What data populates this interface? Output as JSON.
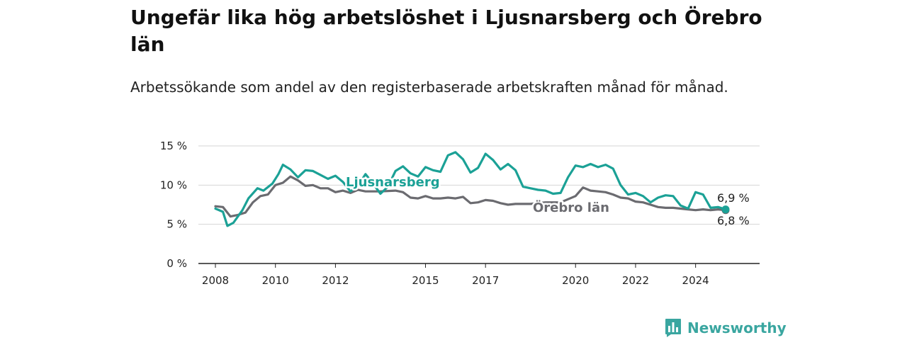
{
  "title": "Ungefär lika hög arbetslöshet i Ljusnarsberg och Örebro län",
  "subtitle": "Arbetssökande som andel av den registerbaserade arbetskraften månad för månad.",
  "logo": {
    "text": "Newsworthy",
    "color": "#3aa6a0",
    "icon": "bar-chart-icon"
  },
  "chart_data": {
    "type": "line",
    "title": "Ungefär lika hög arbetslöshet i Ljusnarsberg och Örebro län",
    "subtitle": "Arbetssökande som andel av den registerbaserade arbetskraften månad för månad.",
    "xlabel": "",
    "ylabel": "",
    "ylim": [
      0,
      15
    ],
    "xlim": [
      2008,
      2025.5
    ],
    "y_ticks": [
      {
        "value": 0,
        "label": "0 %"
      },
      {
        "value": 5,
        "label": "5 %"
      },
      {
        "value": 10,
        "label": "10 %"
      },
      {
        "value": 15,
        "label": "15 %"
      }
    ],
    "x_ticks": [
      {
        "value": 2008,
        "label": "2008"
      },
      {
        "value": 2010,
        "label": "2010"
      },
      {
        "value": 2012,
        "label": "2012"
      },
      {
        "value": 2015,
        "label": "2015"
      },
      {
        "value": 2017,
        "label": "2017"
      },
      {
        "value": 2020,
        "label": "2020"
      },
      {
        "value": 2022,
        "label": "2022"
      },
      {
        "value": 2024,
        "label": "2024"
      }
    ],
    "grid": true,
    "legend": "inline labels",
    "series": [
      {
        "name": "Örebro län",
        "color": "#6b6b70",
        "end_label": "6,8 %",
        "points": [
          [
            2008.0,
            7.3
          ],
          [
            2008.25,
            7.2
          ],
          [
            2008.5,
            6.0
          ],
          [
            2008.75,
            6.2
          ],
          [
            2009.0,
            6.5
          ],
          [
            2009.25,
            7.8
          ],
          [
            2009.5,
            8.6
          ],
          [
            2009.75,
            8.8
          ],
          [
            2010.0,
            10.0
          ],
          [
            2010.25,
            10.3
          ],
          [
            2010.5,
            11.1
          ],
          [
            2010.75,
            10.6
          ],
          [
            2011.0,
            9.9
          ],
          [
            2011.25,
            10.0
          ],
          [
            2011.5,
            9.6
          ],
          [
            2011.75,
            9.6
          ],
          [
            2012.0,
            9.1
          ],
          [
            2012.25,
            9.3
          ],
          [
            2012.5,
            9.0
          ],
          [
            2012.75,
            9.4
          ],
          [
            2013.0,
            9.2
          ],
          [
            2013.5,
            9.2
          ],
          [
            2014.0,
            9.3
          ],
          [
            2014.25,
            9.1
          ],
          [
            2014.5,
            8.4
          ],
          [
            2014.75,
            8.3
          ],
          [
            2015.0,
            8.6
          ],
          [
            2015.25,
            8.3
          ],
          [
            2015.5,
            8.3
          ],
          [
            2015.75,
            8.4
          ],
          [
            2016.0,
            8.3
          ],
          [
            2016.25,
            8.5
          ],
          [
            2016.5,
            7.7
          ],
          [
            2016.75,
            7.8
          ],
          [
            2017.0,
            8.1
          ],
          [
            2017.25,
            8.0
          ],
          [
            2017.5,
            7.7
          ],
          [
            2017.75,
            7.5
          ],
          [
            2018.0,
            7.6
          ],
          [
            2018.5,
            7.6
          ],
          [
            2019.0,
            7.8
          ],
          [
            2019.5,
            7.8
          ],
          [
            2020.0,
            8.6
          ],
          [
            2020.25,
            9.7
          ],
          [
            2020.5,
            9.3
          ],
          [
            2020.75,
            9.2
          ],
          [
            2021.0,
            9.1
          ],
          [
            2021.25,
            8.8
          ],
          [
            2021.5,
            8.4
          ],
          [
            2021.75,
            8.3
          ],
          [
            2022.0,
            7.9
          ],
          [
            2022.25,
            7.8
          ],
          [
            2022.5,
            7.5
          ],
          [
            2022.75,
            7.2
          ],
          [
            2023.0,
            7.1
          ],
          [
            2023.25,
            7.1
          ],
          [
            2023.5,
            7.0
          ],
          [
            2023.75,
            6.9
          ],
          [
            2024.0,
            6.8
          ],
          [
            2024.25,
            6.9
          ],
          [
            2024.5,
            6.8
          ],
          [
            2024.75,
            6.9
          ],
          [
            2025.0,
            6.8
          ]
        ]
      },
      {
        "name": "Ljusnarsberg",
        "color": "#1ba196",
        "end_label": "6,9 %",
        "points": [
          [
            2008.0,
            7.0
          ],
          [
            2008.25,
            6.6
          ],
          [
            2008.4,
            4.8
          ],
          [
            2008.6,
            5.2
          ],
          [
            2008.9,
            6.8
          ],
          [
            2009.1,
            8.3
          ],
          [
            2009.4,
            9.6
          ],
          [
            2009.6,
            9.3
          ],
          [
            2009.9,
            10.2
          ],
          [
            2010.1,
            11.4
          ],
          [
            2010.25,
            12.6
          ],
          [
            2010.5,
            12.0
          ],
          [
            2010.75,
            11.0
          ],
          [
            2011.0,
            11.9
          ],
          [
            2011.25,
            11.8
          ],
          [
            2011.5,
            11.3
          ],
          [
            2011.75,
            10.8
          ],
          [
            2012.0,
            11.2
          ],
          [
            2012.25,
            10.4
          ],
          [
            2012.5,
            9.2
          ],
          [
            2012.75,
            9.9
          ],
          [
            2013.0,
            11.4
          ],
          [
            2013.25,
            10.2
          ],
          [
            2013.5,
            8.9
          ],
          [
            2013.75,
            9.8
          ],
          [
            2014.0,
            11.8
          ],
          [
            2014.25,
            12.4
          ],
          [
            2014.5,
            11.5
          ],
          [
            2014.75,
            11.1
          ],
          [
            2015.0,
            12.3
          ],
          [
            2015.25,
            11.9
          ],
          [
            2015.5,
            11.7
          ],
          [
            2015.75,
            13.8
          ],
          [
            2016.0,
            14.2
          ],
          [
            2016.25,
            13.3
          ],
          [
            2016.5,
            11.6
          ],
          [
            2016.75,
            12.2
          ],
          [
            2017.0,
            14.0
          ],
          [
            2017.25,
            13.2
          ],
          [
            2017.5,
            12.0
          ],
          [
            2017.75,
            12.7
          ],
          [
            2018.0,
            11.9
          ],
          [
            2018.25,
            9.8
          ],
          [
            2018.5,
            9.6
          ],
          [
            2018.75,
            9.4
          ],
          [
            2019.0,
            9.3
          ],
          [
            2019.25,
            8.9
          ],
          [
            2019.5,
            9.0
          ],
          [
            2019.75,
            11.0
          ],
          [
            2020.0,
            12.5
          ],
          [
            2020.25,
            12.3
          ],
          [
            2020.5,
            12.7
          ],
          [
            2020.75,
            12.3
          ],
          [
            2021.0,
            12.6
          ],
          [
            2021.25,
            12.1
          ],
          [
            2021.5,
            10.0
          ],
          [
            2021.75,
            8.8
          ],
          [
            2022.0,
            9.0
          ],
          [
            2022.25,
            8.6
          ],
          [
            2022.5,
            7.8
          ],
          [
            2022.75,
            8.4
          ],
          [
            2023.0,
            8.7
          ],
          [
            2023.25,
            8.6
          ],
          [
            2023.5,
            7.4
          ],
          [
            2023.75,
            7.0
          ],
          [
            2024.0,
            9.1
          ],
          [
            2024.25,
            8.8
          ],
          [
            2024.5,
            7.1
          ],
          [
            2024.75,
            7.2
          ],
          [
            2025.0,
            6.9
          ]
        ]
      }
    ]
  }
}
